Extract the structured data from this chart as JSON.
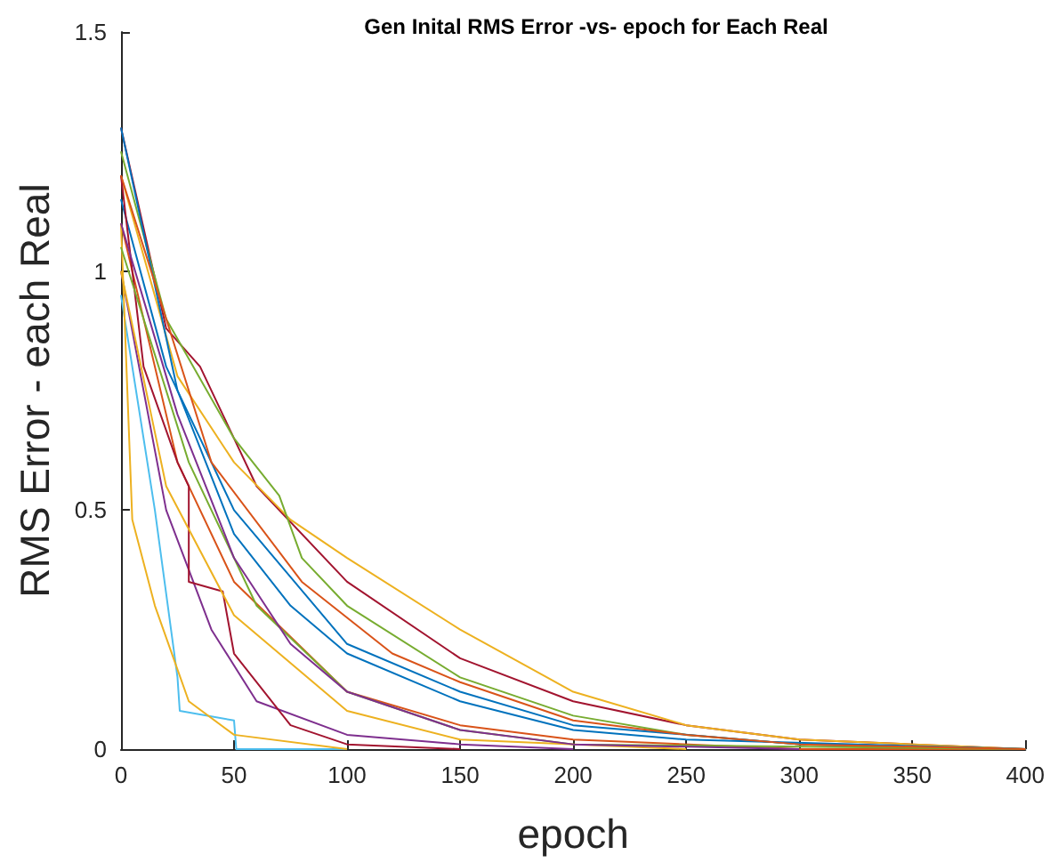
{
  "chart_data": {
    "type": "line",
    "title": "Gen Inital RMS Error -vs- epoch for Each Real",
    "xlabel": "epoch",
    "ylabel": "RMS Error - each Real",
    "xlim": [
      0,
      400
    ],
    "xticks": [
      0,
      50,
      100,
      150,
      200,
      250,
      300,
      350,
      400
    ],
    "ylim": [
      0,
      1.5
    ],
    "yticks": [
      0,
      0.5,
      1,
      1.5
    ],
    "marker": "none",
    "line_style": "solid",
    "series": [
      {
        "color": "#a2142f",
        "x": [
          0,
          20,
          35,
          45,
          60,
          100,
          150,
          200,
          250,
          300,
          350,
          400
        ],
        "values": [
          1.3,
          0.88,
          0.8,
          0.7,
          0.55,
          0.35,
          0.19,
          0.1,
          0.05,
          0.02,
          0.01,
          0
        ]
      },
      {
        "color": "#edb120",
        "x": [
          0,
          25,
          50,
          75,
          100,
          150,
          200,
          250,
          300,
          400
        ],
        "values": [
          1.2,
          0.78,
          0.6,
          0.48,
          0.4,
          0.25,
          0.12,
          0.05,
          0.02,
          0
        ]
      },
      {
        "color": "#77ac30",
        "x": [
          0,
          20,
          50,
          70,
          80,
          100,
          150,
          200,
          250,
          300,
          400
        ],
        "values": [
          1.25,
          0.9,
          0.65,
          0.53,
          0.4,
          0.3,
          0.15,
          0.07,
          0.03,
          0.01,
          0
        ]
      },
      {
        "color": "#0072bd",
        "x": [
          0,
          20,
          50,
          100,
          150,
          200,
          300,
          400
        ],
        "values": [
          1.15,
          0.8,
          0.5,
          0.22,
          0.12,
          0.05,
          0.01,
          0
        ]
      },
      {
        "color": "#d95319",
        "x": [
          0,
          25,
          50,
          100,
          150,
          200,
          300,
          400
        ],
        "values": [
          1.1,
          0.6,
          0.35,
          0.12,
          0.05,
          0.02,
          0,
          0
        ]
      },
      {
        "color": "#7e2f8e",
        "x": [
          0,
          20,
          40,
          60,
          100,
          150,
          200
        ],
        "values": [
          1.0,
          0.5,
          0.25,
          0.1,
          0.03,
          0.01,
          0
        ]
      },
      {
        "color": "#4dbeee",
        "x": [
          0,
          15,
          25,
          26,
          50,
          51,
          100
        ],
        "values": [
          0.95,
          0.5,
          0.15,
          0.08,
          0.06,
          0,
          0
        ]
      },
      {
        "color": "#edb120",
        "x": [
          0,
          5,
          15,
          30,
          50,
          100
        ],
        "values": [
          1.1,
          0.48,
          0.3,
          0.1,
          0.03,
          0
        ]
      },
      {
        "color": "#a2142f",
        "x": [
          0,
          10,
          25,
          30,
          30,
          45,
          50,
          75,
          100,
          150
        ],
        "values": [
          1.2,
          0.8,
          0.6,
          0.55,
          0.35,
          0.33,
          0.2,
          0.05,
          0.01,
          0
        ]
      },
      {
        "color": "#0072bd",
        "x": [
          0,
          25,
          50,
          75,
          100,
          150,
          200,
          250,
          400
        ],
        "values": [
          1.3,
          0.75,
          0.45,
          0.3,
          0.2,
          0.1,
          0.04,
          0.02,
          0
        ]
      },
      {
        "color": "#77ac30",
        "x": [
          0,
          30,
          60,
          100,
          150,
          200,
          400
        ],
        "values": [
          1.05,
          0.6,
          0.3,
          0.12,
          0.04,
          0.01,
          0
        ]
      },
      {
        "color": "#edb120",
        "x": [
          0,
          20,
          50,
          100,
          150,
          250
        ],
        "values": [
          1.0,
          0.55,
          0.28,
          0.08,
          0.02,
          0
        ]
      },
      {
        "color": "#d95319",
        "x": [
          0,
          40,
          80,
          120,
          150,
          200,
          250,
          300,
          400
        ],
        "values": [
          1.2,
          0.6,
          0.35,
          0.2,
          0.14,
          0.06,
          0.03,
          0.01,
          0
        ]
      },
      {
        "color": "#7e2f8e",
        "x": [
          0,
          25,
          50,
          75,
          100,
          150,
          200,
          300
        ],
        "values": [
          1.1,
          0.7,
          0.4,
          0.22,
          0.12,
          0.04,
          0.01,
          0
        ]
      }
    ]
  }
}
